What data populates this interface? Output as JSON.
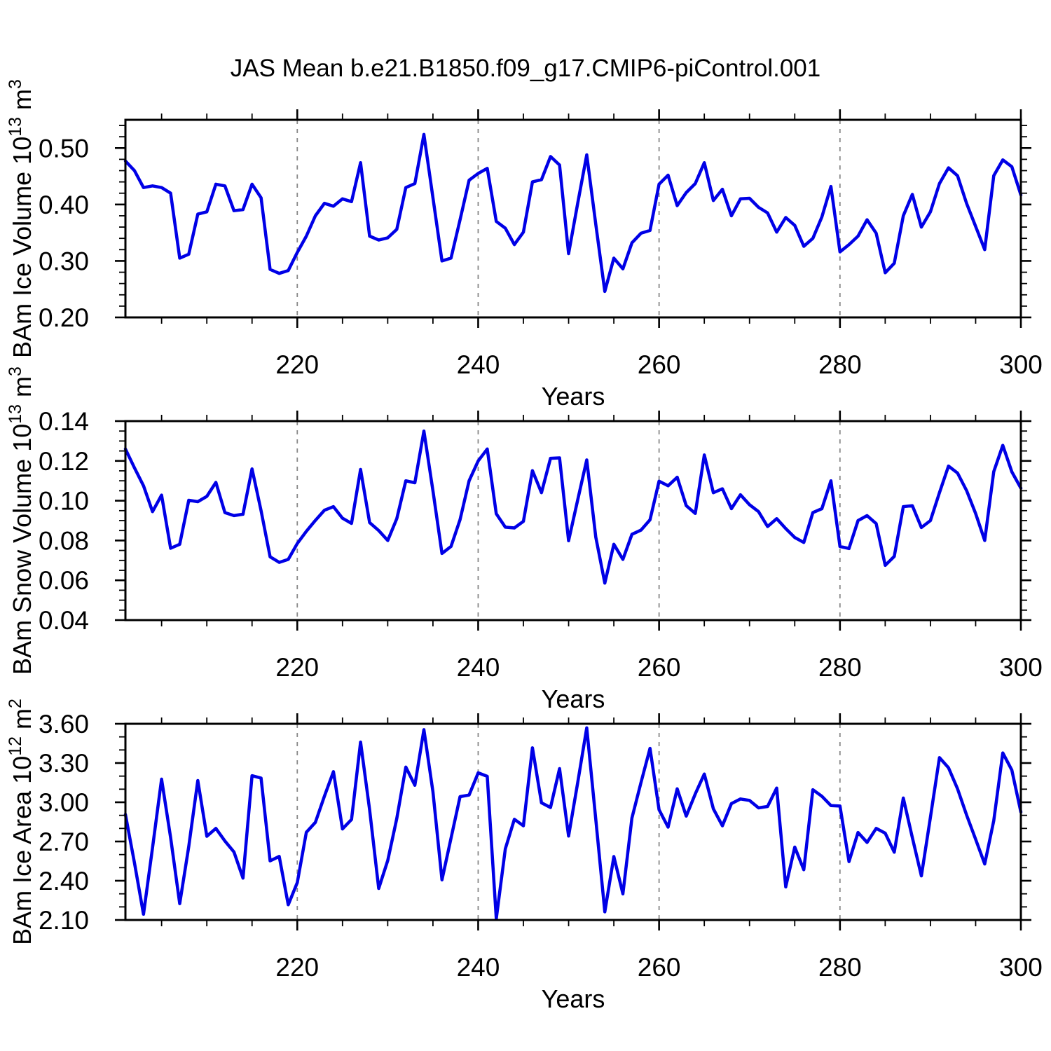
{
  "title": "JAS Mean b.e21.B1850.f09_g17.CMIP6-piControl.001",
  "style": {
    "line_color": "#0000e6",
    "grid_color": "#888888",
    "axis_color": "#000000",
    "text_color": "#000000",
    "background": "#ffffff"
  },
  "x_axis": {
    "label": "Years",
    "start": 201,
    "end": 300,
    "major_ticks": [
      220,
      240,
      260,
      280,
      300
    ],
    "minor_step": 5,
    "gridlines": [
      220,
      240,
      260,
      280
    ]
  },
  "chart_data": [
    {
      "type": "line",
      "name": "bam-ice-volume",
      "ylabel": [
        {
          "text": "BAm Ice Volume 10"
        },
        {
          "text": "13",
          "sup": true
        },
        {
          "text": " m"
        },
        {
          "text": "3",
          "sup": true
        }
      ],
      "ylabel_plain": "BAm Ice Volume 10^13 m^3",
      "xlabel": "Years",
      "ylim": [
        0.2,
        0.55
      ],
      "yticks": [
        {
          "value": 0.2,
          "label": "0.20"
        },
        {
          "value": 0.3,
          "label": "0.30"
        },
        {
          "value": 0.4,
          "label": "0.40"
        },
        {
          "value": 0.5,
          "label": "0.50"
        }
      ],
      "yminor_step": 0.02,
      "x_start": 201,
      "x_step": 1,
      "values": [
        0.477,
        0.46,
        0.43,
        0.433,
        0.43,
        0.42,
        0.305,
        0.312,
        0.383,
        0.387,
        0.436,
        0.433,
        0.389,
        0.391,
        0.436,
        0.412,
        0.285,
        0.278,
        0.283,
        0.315,
        0.344,
        0.38,
        0.402,
        0.397,
        0.41,
        0.405,
        0.474,
        0.344,
        0.337,
        0.341,
        0.356,
        0.43,
        0.437,
        0.524,
        0.412,
        0.3,
        0.305,
        0.373,
        0.443,
        0.455,
        0.464,
        0.37,
        0.358,
        0.329,
        0.351,
        0.44,
        0.444,
        0.485,
        0.47,
        0.313,
        0.402,
        0.488,
        0.365,
        0.246,
        0.305,
        0.286,
        0.332,
        0.349,
        0.354,
        0.436,
        0.452,
        0.398,
        0.421,
        0.437,
        0.474,
        0.407,
        0.427,
        0.38,
        0.41,
        0.411,
        0.395,
        0.385,
        0.351,
        0.377,
        0.363,
        0.326,
        0.34,
        0.378,
        0.432,
        0.316,
        0.329,
        0.344,
        0.373,
        0.349,
        0.279,
        0.296,
        0.38,
        0.418,
        0.36,
        0.387,
        0.437,
        0.465,
        0.451,
        0.402,
        0.361,
        0.32,
        0.451,
        0.479,
        0.467,
        0.417
      ]
    },
    {
      "type": "line",
      "name": "bam-snow-volume",
      "ylabel": [
        {
          "text": "BAm Snow Volume 10"
        },
        {
          "text": "13",
          "sup": true
        },
        {
          "text": " m"
        },
        {
          "text": "3",
          "sup": true
        }
      ],
      "ylabel_plain": "BAm Snow Volume 10^13 m^3",
      "xlabel": "Years",
      "ylim": [
        0.04,
        0.14
      ],
      "yticks": [
        {
          "value": 0.04,
          "label": "0.04"
        },
        {
          "value": 0.06,
          "label": "0.06"
        },
        {
          "value": 0.08,
          "label": "0.08"
        },
        {
          "value": 0.1,
          "label": "0.10"
        },
        {
          "value": 0.12,
          "label": "0.12"
        },
        {
          "value": 0.14,
          "label": "0.14"
        }
      ],
      "yminor_step": 0.005,
      "x_start": 201,
      "x_step": 1,
      "values": [
        0.126,
        0.1165,
        0.1075,
        0.0945,
        0.1028,
        0.0761,
        0.0781,
        0.1002,
        0.0995,
        0.1022,
        0.1092,
        0.094,
        0.0925,
        0.0932,
        0.116,
        0.095,
        0.0718,
        0.069,
        0.0705,
        0.0785,
        0.0846,
        0.0901,
        0.0952,
        0.097,
        0.0912,
        0.0886,
        0.1157,
        0.089,
        0.085,
        0.08,
        0.091,
        0.11,
        0.109,
        0.135,
        0.105,
        0.0735,
        0.077,
        0.0905,
        0.11,
        0.12,
        0.126,
        0.0934,
        0.0867,
        0.0863,
        0.0896,
        0.1151,
        0.104,
        0.1213,
        0.1215,
        0.0799,
        0.1004,
        0.1205,
        0.0817,
        0.0586,
        0.0781,
        0.0705,
        0.0831,
        0.0852,
        0.0904,
        0.1098,
        0.1075,
        0.1118,
        0.0975,
        0.0936,
        0.123,
        0.104,
        0.106,
        0.096,
        0.103,
        0.098,
        0.0945,
        0.087,
        0.091,
        0.086,
        0.0815,
        0.079,
        0.094,
        0.096,
        0.11,
        0.077,
        0.076,
        0.09,
        0.0925,
        0.0885,
        0.0675,
        0.072,
        0.097,
        0.0975,
        0.0865,
        0.09,
        0.104,
        0.1174,
        0.1139,
        0.1051,
        0.0935,
        0.08,
        0.1146,
        0.1278,
        0.1145,
        0.1063
      ]
    },
    {
      "type": "line",
      "name": "bam-ice-area",
      "ylabel": [
        {
          "text": "BAm Ice Area 10"
        },
        {
          "text": "12",
          "sup": true
        },
        {
          "text": " m"
        },
        {
          "text": "2",
          "sup": true
        }
      ],
      "ylabel_plain": "BAm Ice Area 10^12 m^2",
      "xlabel": "Years",
      "ylim": [
        2.1,
        3.6
      ],
      "yticks": [
        {
          "value": 2.1,
          "label": "2.10"
        },
        {
          "value": 2.4,
          "label": "2.40"
        },
        {
          "value": 2.7,
          "label": "2.70"
        },
        {
          "value": 3.0,
          "label": "3.00"
        },
        {
          "value": 3.3,
          "label": "3.30"
        },
        {
          "value": 3.6,
          "label": "3.60"
        }
      ],
      "yminor_step": 0.1,
      "x_start": 201,
      "x_step": 1,
      "values": [
        2.907,
        2.537,
        2.144,
        2.653,
        3.177,
        2.73,
        2.225,
        2.662,
        3.166,
        2.74,
        2.8,
        2.704,
        2.62,
        2.42,
        3.203,
        3.185,
        2.552,
        2.586,
        2.216,
        2.386,
        2.77,
        2.846,
        3.046,
        3.234,
        2.796,
        2.868,
        3.46,
        2.943,
        2.341,
        2.555,
        2.876,
        3.269,
        3.13,
        3.555,
        3.08,
        2.407,
        2.725,
        3.043,
        3.055,
        3.225,
        3.198,
        2.11,
        2.644,
        2.87,
        2.82,
        3.416,
        2.996,
        2.96,
        3.257,
        2.742,
        3.15,
        3.569,
        2.87,
        2.162,
        2.585,
        2.3,
        2.88,
        3.15,
        3.412,
        2.943,
        2.81,
        3.103,
        2.894,
        3.064,
        3.216,
        2.95,
        2.82,
        2.99,
        3.025,
        3.014,
        2.957,
        2.968,
        3.109,
        2.353,
        2.657,
        2.484,
        3.096,
        3.046,
        2.975,
        2.971,
        2.546,
        2.769,
        2.693,
        2.8,
        2.764,
        2.618,
        3.032,
        2.73,
        2.437,
        2.885,
        3.341,
        3.264,
        3.103,
        2.903,
        2.716,
        2.528,
        2.859,
        3.377,
        3.246,
        2.925
      ]
    }
  ]
}
